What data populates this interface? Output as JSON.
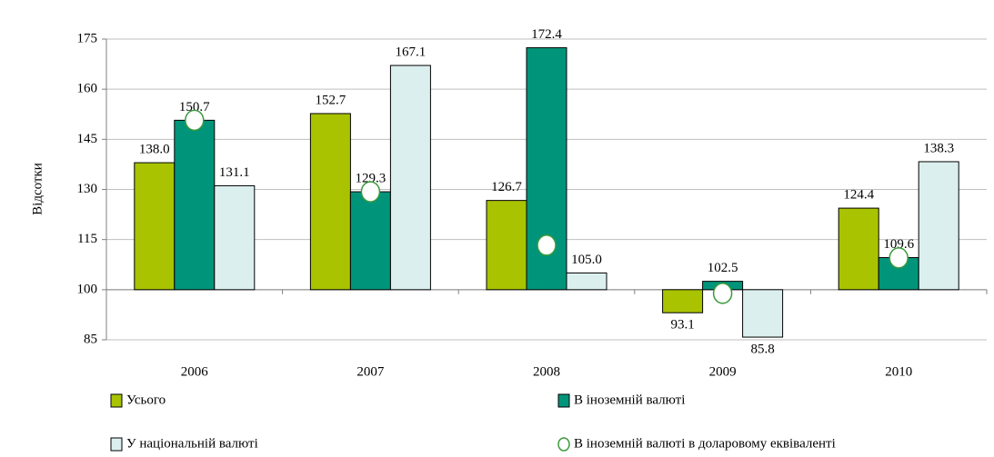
{
  "chart_data": {
    "type": "bar",
    "y_label": "Відсотки",
    "categories": [
      "2006",
      "2007",
      "2008",
      "2009",
      "2010"
    ],
    "x_axis_crossing": 100,
    "series": [
      {
        "name": "Усього",
        "color": "#a9c300",
        "values": [
          138.0,
          152.7,
          126.7,
          93.1,
          124.4
        ],
        "value_labels": [
          "138.0",
          "152.7",
          "126.7",
          "93.1",
          "124.4"
        ]
      },
      {
        "name": "В іноземній валюті",
        "color": "#00957a",
        "values": [
          150.7,
          129.3,
          172.4,
          102.5,
          109.6
        ],
        "value_labels": [
          "150.7",
          "129.3",
          "172.4",
          "102.5",
          "109.6"
        ]
      },
      {
        "name": "У національній валюті",
        "color": "#dcefef",
        "values": [
          131.1,
          167.1,
          105.0,
          85.8,
          138.3
        ],
        "value_labels": [
          "131.1",
          "167.1",
          "105.0",
          "85.8",
          "138.3"
        ]
      },
      {
        "name": "В іноземній валюті в доларовому еквіваленті",
        "color": "#ffffff",
        "stroke": "#3a9a3a",
        "marker": "circle",
        "values": [
          150.7,
          129.3,
          113.3,
          98.9,
          109.5
        ]
      }
    ],
    "ylim": [
      85,
      175
    ],
    "yticks": [
      85,
      100,
      115,
      130,
      145,
      160,
      175
    ],
    "grid": true
  }
}
